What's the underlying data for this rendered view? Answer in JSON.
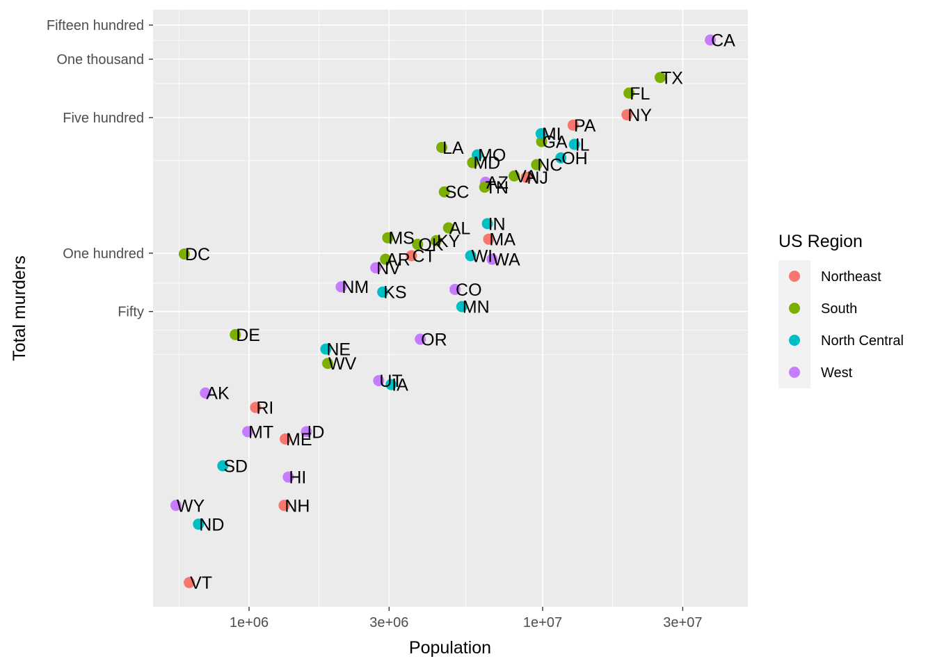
{
  "chart_data": {
    "type": "scatter",
    "title": "",
    "xlabel": "Population",
    "ylabel": "Total murders",
    "x_scale": "log10",
    "y_scale": "log10",
    "xlim": [
      471000,
      50000000
    ],
    "ylim": [
      1.5,
      1800
    ],
    "x_ticks": [
      {
        "value": 1000000,
        "label": "1e+06"
      },
      {
        "value": 3000000,
        "label": "3e+06"
      },
      {
        "value": 10000000,
        "label": "1e+07"
      },
      {
        "value": 30000000,
        "label": "3e+07"
      }
    ],
    "x_minor_ticks": [
      577350,
      1732050,
      5477226,
      17320508
    ],
    "y_ticks": [
      {
        "value": 50,
        "label": "Fifty"
      },
      {
        "value": 100,
        "label": "One hundred"
      },
      {
        "value": 500,
        "label": "Five hundred"
      },
      {
        "value": 1000,
        "label": "One thousand"
      },
      {
        "value": 1500,
        "label": "Fifteen hundred"
      }
    ],
    "y_minor_ticks": [
      30,
      40,
      70,
      300,
      750,
      1250
    ],
    "grid": true,
    "legend": {
      "title": "US Region",
      "position": "right",
      "entries": [
        {
          "name": "Northeast",
          "color": "#F8766D"
        },
        {
          "name": "South",
          "color": "#7CAE00"
        },
        {
          "name": "North Central",
          "color": "#00BFC4"
        },
        {
          "name": "West",
          "color": "#C77CFF"
        }
      ]
    },
    "points": [
      {
        "label": "AL",
        "region": "South",
        "x": 4779736,
        "y": 135
      },
      {
        "label": "AK",
        "region": "West",
        "x": 710231,
        "y": 19
      },
      {
        "label": "AZ",
        "region": "West",
        "x": 6392017,
        "y": 232
      },
      {
        "label": "AR",
        "region": "South",
        "x": 2915918,
        "y": 93
      },
      {
        "label": "CA",
        "region": "West",
        "x": 37253956,
        "y": 1257
      },
      {
        "label": "CO",
        "region": "West",
        "x": 5029196,
        "y": 65
      },
      {
        "label": "CT",
        "region": "Northeast",
        "x": 3574097,
        "y": 97
      },
      {
        "label": "DE",
        "region": "South",
        "x": 897934,
        "y": 38
      },
      {
        "label": "DC",
        "region": "South",
        "x": 601723,
        "y": 99
      },
      {
        "label": "FL",
        "region": "South",
        "x": 19687653,
        "y": 669
      },
      {
        "label": "GA",
        "region": "South",
        "x": 9920000,
        "y": 376
      },
      {
        "label": "HI",
        "region": "West",
        "x": 1360301,
        "y": 7
      },
      {
        "label": "ID",
        "region": "West",
        "x": 1567582,
        "y": 12
      },
      {
        "label": "IL",
        "region": "North Central",
        "x": 12830632,
        "y": 364
      },
      {
        "label": "IN",
        "region": "North Central",
        "x": 6483802,
        "y": 142
      },
      {
        "label": "IA",
        "region": "North Central",
        "x": 3046355,
        "y": 21
      },
      {
        "label": "KS",
        "region": "North Central",
        "x": 2853118,
        "y": 63
      },
      {
        "label": "KY",
        "region": "South",
        "x": 4339367,
        "y": 116
      },
      {
        "label": "LA",
        "region": "South",
        "x": 4533372,
        "y": 351
      },
      {
        "label": "ME",
        "region": "Northeast",
        "x": 1328361,
        "y": 11
      },
      {
        "label": "MD",
        "region": "South",
        "x": 5773552,
        "y": 293
      },
      {
        "label": "MA",
        "region": "Northeast",
        "x": 6547629,
        "y": 118
      },
      {
        "label": "MI",
        "region": "North Central",
        "x": 9883640,
        "y": 413
      },
      {
        "label": "MN",
        "region": "North Central",
        "x": 5303925,
        "y": 53
      },
      {
        "label": "MS",
        "region": "South",
        "x": 2967297,
        "y": 120
      },
      {
        "label": "MO",
        "region": "North Central",
        "x": 5988927,
        "y": 321
      },
      {
        "label": "MT",
        "region": "West",
        "x": 989415,
        "y": 12
      },
      {
        "label": "NE",
        "region": "North Central",
        "x": 1826341,
        "y": 32
      },
      {
        "label": "NV",
        "region": "West",
        "x": 2700551,
        "y": 84
      },
      {
        "label": "NH",
        "region": "Northeast",
        "x": 1316470,
        "y": 5
      },
      {
        "label": "NJ",
        "region": "Northeast",
        "x": 8791894,
        "y": 246
      },
      {
        "label": "NM",
        "region": "West",
        "x": 2059179,
        "y": 67
      },
      {
        "label": "NY",
        "region": "Northeast",
        "x": 19378102,
        "y": 517
      },
      {
        "label": "NC",
        "region": "South",
        "x": 9535483,
        "y": 286
      },
      {
        "label": "ND",
        "region": "North Central",
        "x": 672591,
        "y": 4
      },
      {
        "label": "OH",
        "region": "North Central",
        "x": 11536504,
        "y": 310
      },
      {
        "label": "OK",
        "region": "South",
        "x": 3751351,
        "y": 111
      },
      {
        "label": "OR",
        "region": "West",
        "x": 3831074,
        "y": 36
      },
      {
        "label": "PA",
        "region": "Northeast",
        "x": 12702379,
        "y": 457
      },
      {
        "label": "RI",
        "region": "Northeast",
        "x": 1052567,
        "y": 16
      },
      {
        "label": "SC",
        "region": "South",
        "x": 4625364,
        "y": 207
      },
      {
        "label": "SD",
        "region": "North Central",
        "x": 814180,
        "y": 8
      },
      {
        "label": "TN",
        "region": "South",
        "x": 6346105,
        "y": 219
      },
      {
        "label": "TX",
        "region": "South",
        "x": 25145561,
        "y": 805
      },
      {
        "label": "UT",
        "region": "West",
        "x": 2763885,
        "y": 22
      },
      {
        "label": "VT",
        "region": "Northeast",
        "x": 625741,
        "y": 2
      },
      {
        "label": "VA",
        "region": "South",
        "x": 8001024,
        "y": 250
      },
      {
        "label": "WA",
        "region": "West",
        "x": 6724540,
        "y": 93
      },
      {
        "label": "WV",
        "region": "South",
        "x": 1852994,
        "y": 27
      },
      {
        "label": "WI",
        "region": "North Central",
        "x": 5686986,
        "y": 97
      },
      {
        "label": "WY",
        "region": "West",
        "x": 563626,
        "y": 5
      }
    ]
  },
  "colors": {
    "panel_background": "#EBEBEB",
    "grid_major": "#FFFFFF",
    "legend_key_background": "#F2F2F2"
  }
}
